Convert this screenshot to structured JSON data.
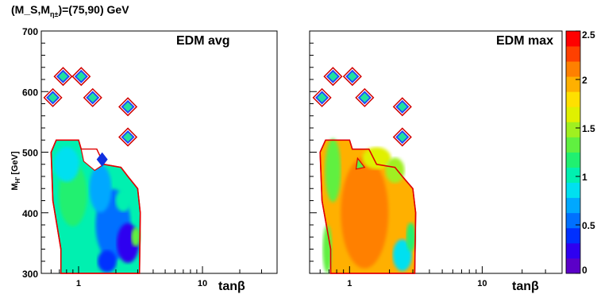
{
  "header": {
    "title_main": "(M_S,M",
    "title_sub": "η±",
    "title_tail": ")=(75,90) GeV"
  },
  "chart_data": {
    "type": "heatmap",
    "y_label": "M_{H'} [GeV]",
    "x_label": "tanβ",
    "x_scale": "log",
    "x_ticks": [
      "1",
      "10"
    ],
    "y_ticks": [
      "300",
      "400",
      "500",
      "600",
      "700"
    ],
    "y_range": [
      300,
      700
    ],
    "x_range": [
      0.5,
      40
    ],
    "colorbar": {
      "range": [
        0,
        2.5
      ],
      "ticks": [
        "0",
        "0.5",
        "1",
        "1.5",
        "2",
        "2.5"
      ],
      "colors": [
        "#5b00c8",
        "#2e00f0",
        "#0030ff",
        "#0070ff",
        "#00a8ff",
        "#00e0f0",
        "#00f0b0",
        "#20f070",
        "#60f040",
        "#a0f020",
        "#e0f000",
        "#ffe000",
        "#ffb000",
        "#ff8000",
        "#ff4000",
        "#ff0000"
      ]
    },
    "panels": [
      {
        "label": "EDM avg",
        "diamonds": [
          {
            "tanb": 0.62,
            "m": 590,
            "v": 1.25
          },
          {
            "tanb": 0.75,
            "m": 625,
            "v": 1.25
          },
          {
            "tanb": 1.05,
            "m": 625,
            "v": 1.25
          },
          {
            "tanb": 1.3,
            "m": 590,
            "v": 1.25
          },
          {
            "tanb": 2.5,
            "m": 575,
            "v": 1.25
          },
          {
            "tanb": 2.5,
            "m": 525,
            "v": 1.25
          },
          {
            "tanb": 1.55,
            "m": 488,
            "v": 0.35
          }
        ],
        "blob_value": 0.95
      },
      {
        "label": "EDM max",
        "diamonds": [
          {
            "tanb": 0.62,
            "m": 590,
            "v": 1.25
          },
          {
            "tanb": 0.75,
            "m": 625,
            "v": 1.25
          },
          {
            "tanb": 1.05,
            "m": 625,
            "v": 1.25
          },
          {
            "tanb": 1.3,
            "m": 590,
            "v": 1.25
          },
          {
            "tanb": 2.5,
            "m": 575,
            "v": 1.25
          },
          {
            "tanb": 2.5,
            "m": 525,
            "v": 1.25
          }
        ],
        "blob_value": 2.0
      }
    ]
  }
}
